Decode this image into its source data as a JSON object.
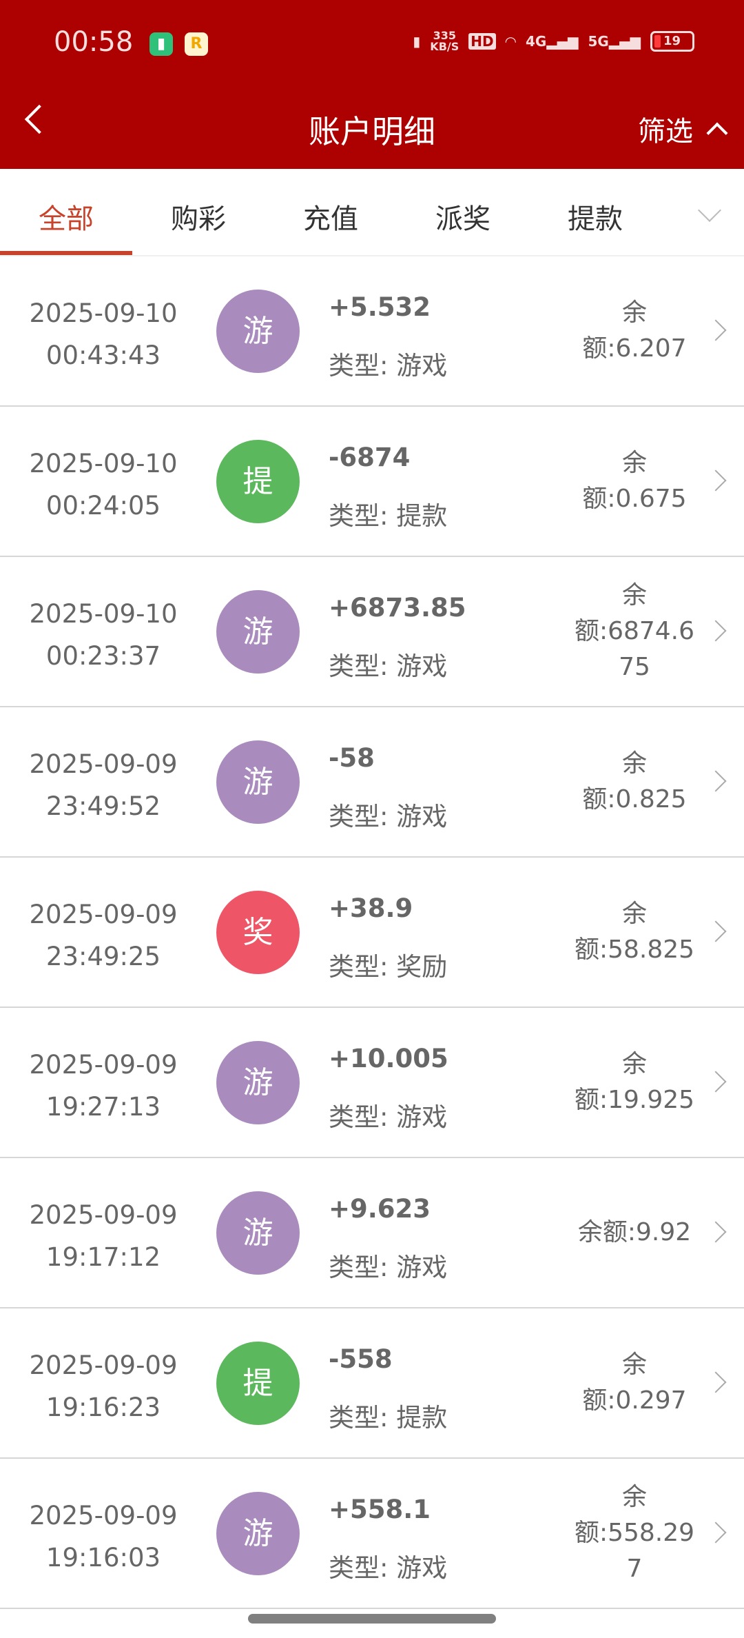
{
  "status_bar": {
    "time": "00:58",
    "net_speed": "335",
    "net_unit": "KB/S",
    "hd": "HD",
    "signal_1": "4G",
    "signal_2": "5G",
    "battery": "19"
  },
  "header": {
    "title": "账户明细",
    "filter": "筛选"
  },
  "tabs": [
    {
      "label": "全部"
    },
    {
      "label": "购彩"
    },
    {
      "label": "充值"
    },
    {
      "label": "派奖"
    },
    {
      "label": "提款"
    }
  ],
  "colors": {
    "header": "#ad0000",
    "accent": "#c8432b",
    "game": "#a98bbd",
    "withdraw": "#5cb85c",
    "reward": "#ee5566"
  },
  "rows": [
    {
      "date": "2025-09-10",
      "time": "00:43:43",
      "icon": "游",
      "kind": "game",
      "amount": "+5.532",
      "type": "类型: 游戏",
      "balance": "余额:6.207"
    },
    {
      "date": "2025-09-10",
      "time": "00:24:05",
      "icon": "提",
      "kind": "withdraw",
      "amount": "-6874",
      "type": "类型: 提款",
      "balance": "余额:0.675"
    },
    {
      "date": "2025-09-10",
      "time": "00:23:37",
      "icon": "游",
      "kind": "game",
      "amount": "+6873.85",
      "type": "类型: 游戏",
      "balance": "余额:6874.675"
    },
    {
      "date": "2025-09-09",
      "time": "23:49:52",
      "icon": "游",
      "kind": "game",
      "amount": "-58",
      "type": "类型: 游戏",
      "balance": "余额:0.825"
    },
    {
      "date": "2025-09-09",
      "time": "23:49:25",
      "icon": "奖",
      "kind": "reward",
      "amount": "+38.9",
      "type": "类型: 奖励",
      "balance": "余额:58.825"
    },
    {
      "date": "2025-09-09",
      "time": "19:27:13",
      "icon": "游",
      "kind": "game",
      "amount": "+10.005",
      "type": "类型: 游戏",
      "balance": "余额:19.925"
    },
    {
      "date": "2025-09-09",
      "time": "19:17:12",
      "icon": "游",
      "kind": "game",
      "amount": "+9.623",
      "type": "类型: 游戏",
      "balance": "余额:9.92"
    },
    {
      "date": "2025-09-09",
      "time": "19:16:23",
      "icon": "提",
      "kind": "withdraw",
      "amount": "-558",
      "type": "类型: 提款",
      "balance": "余额:0.297"
    },
    {
      "date": "2025-09-09",
      "time": "19:16:03",
      "icon": "游",
      "kind": "game",
      "amount": "+558.1",
      "type": "类型: 游戏",
      "balance": "余额:558.297"
    }
  ]
}
